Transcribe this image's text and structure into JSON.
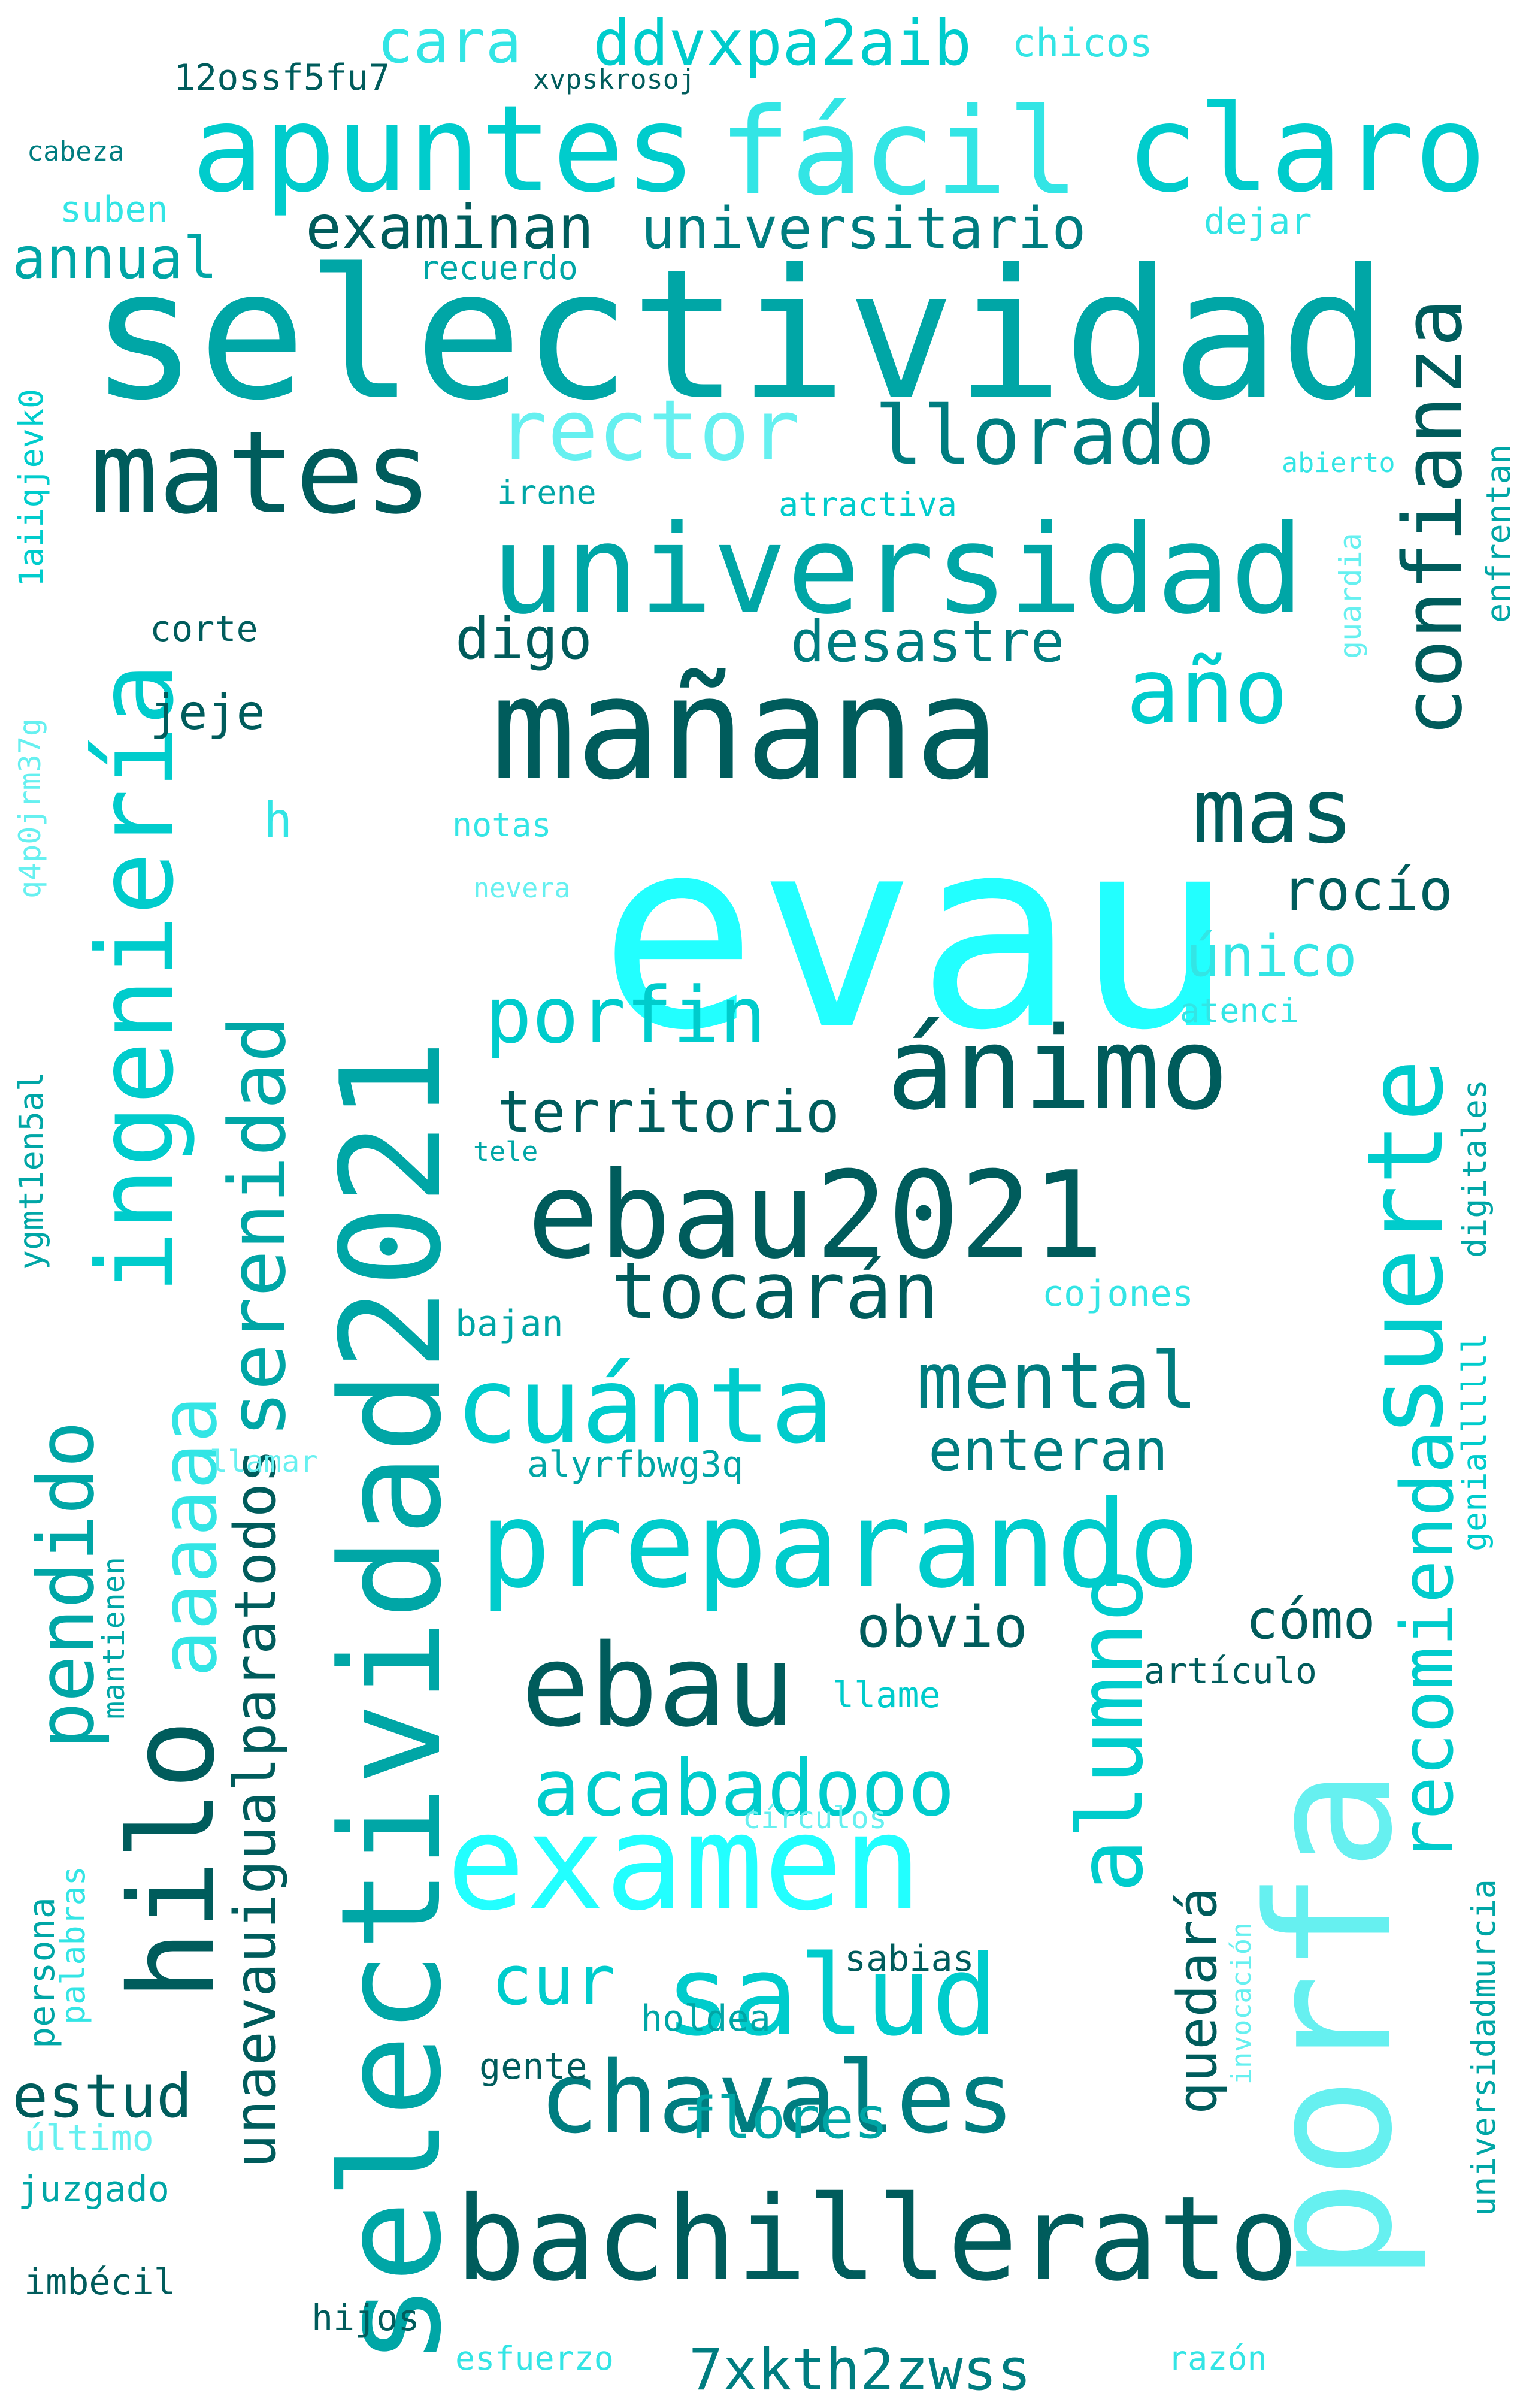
{
  "palette": {
    "dark": "#005c5c",
    "teal_dark": "#007d80",
    "teal": "#00a6a6",
    "cyan_mid": "#00cccc",
    "cyan_light": "#33e5e5",
    "cyan_bright": "#22ffff",
    "cyan_pale": "#66f0f0"
  },
  "words": [
    {
      "text": "evau",
      "color": "#22ffff"
    },
    {
      "text": "selectividad",
      "color": "#00a6a6"
    },
    {
      "text": "porfa",
      "color": "#66f0f0"
    },
    {
      "text": "selectividad2021",
      "color": "#00a6a6"
    },
    {
      "text": "mañana",
      "color": "#005c5c"
    },
    {
      "text": "universidad",
      "color": "#00a6a6"
    },
    {
      "text": "apuntes",
      "color": "#00cccc"
    },
    {
      "text": "fácil",
      "color": "#33e5e5"
    },
    {
      "text": "claro",
      "color": "#00cccc"
    },
    {
      "text": "mates",
      "color": "#005c5c"
    },
    {
      "text": "ebau2021",
      "color": "#005c5c"
    },
    {
      "text": "examen",
      "color": "#22ffff"
    },
    {
      "text": "bachillerato",
      "color": "#005c5c"
    },
    {
      "text": "preparando",
      "color": "#00cccc"
    },
    {
      "text": "ánimo",
      "color": "#005c5c"
    },
    {
      "text": "ebau",
      "color": "#005c5c"
    },
    {
      "text": "chavales",
      "color": "#007d80"
    },
    {
      "text": "salud",
      "color": "#00cccc"
    },
    {
      "text": "cuánta",
      "color": "#00cccc"
    },
    {
      "text": "hilo",
      "color": "#005c5c"
    },
    {
      "text": "suerte",
      "color": "#00cccc"
    },
    {
      "text": "ingeniería",
      "color": "#00cccc"
    },
    {
      "text": "confianza",
      "color": "#005c5c"
    },
    {
      "text": "alumno",
      "color": "#00cccc"
    },
    {
      "text": "rector",
      "color": "#66f0f0"
    },
    {
      "text": "llorado",
      "color": "#007d80"
    },
    {
      "text": "año",
      "color": "#00cccc"
    },
    {
      "text": "mas",
      "color": "#005c5c"
    },
    {
      "text": "porfin",
      "color": "#00cccc"
    },
    {
      "text": "tocarán",
      "color": "#005c5c"
    },
    {
      "text": "mental",
      "color": "#007d80"
    },
    {
      "text": "acabadooo",
      "color": "#00cccc"
    },
    {
      "text": "serenidad",
      "color": "#00a6a6"
    },
    {
      "text": "recomienda",
      "color": "#00cccc"
    },
    {
      "text": "pendido",
      "color": "#00a6a6"
    },
    {
      "text": "aaaaaa",
      "color": "#33e5e5"
    },
    {
      "text": "ddvxpa2aib",
      "color": "#00cccc"
    },
    {
      "text": "examinan",
      "color": "#005c5c"
    },
    {
      "text": "universitario",
      "color": "#007d80"
    },
    {
      "text": "cara",
      "color": "#33e5e5"
    },
    {
      "text": "annual",
      "color": "#00a6a6"
    },
    {
      "text": "digo",
      "color": "#005c5c"
    },
    {
      "text": "desastre",
      "color": "#007d80"
    },
    {
      "text": "jeje",
      "color": "#005c5c"
    },
    {
      "text": "territorio",
      "color": "#005c5c"
    },
    {
      "text": "rocío",
      "color": "#005c5c"
    },
    {
      "text": "único",
      "color": "#33e5e5"
    },
    {
      "text": "enteran",
      "color": "#007d80"
    },
    {
      "text": "unaevauigualparatodos",
      "color": "#005c5c"
    },
    {
      "text": "obvio",
      "color": "#005c5c"
    },
    {
      "text": "cómo",
      "color": "#005c5c"
    },
    {
      "text": "cur",
      "color": "#00cccc"
    },
    {
      "text": "estud",
      "color": "#005c5c"
    },
    {
      "text": "flores",
      "color": "#00a6a6"
    },
    {
      "text": "quedará",
      "color": "#005c5c"
    },
    {
      "text": "7xkth2zwss",
      "color": "#007d80"
    },
    {
      "text": "12ossf5fu7",
      "color": "#005c5c"
    },
    {
      "text": "xvpskrosoj",
      "color": "#005c5c"
    },
    {
      "text": "chicos",
      "color": "#33e5e5"
    },
    {
      "text": "cabeza",
      "color": "#007d80"
    },
    {
      "text": "suben",
      "color": "#33e5e5"
    },
    {
      "text": "dejar",
      "color": "#33e5e5"
    },
    {
      "text": "recuerdo",
      "color": "#00a6a6"
    },
    {
      "text": "1aiiqjevk0",
      "color": "#00cccc"
    },
    {
      "text": "abierto",
      "color": "#33e5e5"
    },
    {
      "text": "irene",
      "color": "#00a6a6"
    },
    {
      "text": "atractiva",
      "color": "#00cccc"
    },
    {
      "text": "enfrentan",
      "color": "#00a6a6"
    },
    {
      "text": "guardia",
      "color": "#66f0f0"
    },
    {
      "text": "corte",
      "color": "#005c5c"
    },
    {
      "text": "q4p0jrm37g",
      "color": "#66f0f0"
    },
    {
      "text": "h",
      "color": "#33e5e5"
    },
    {
      "text": "notas",
      "color": "#33e5e5"
    },
    {
      "text": "nevera",
      "color": "#66f0f0"
    },
    {
      "text": "atenci",
      "color": "#33e5e5"
    },
    {
      "text": "digitales",
      "color": "#00a6a6"
    },
    {
      "text": "tele",
      "color": "#00a6a6"
    },
    {
      "text": "ygmt1en5al",
      "color": "#00a6a6"
    },
    {
      "text": "geniallllll",
      "color": "#00cccc"
    },
    {
      "text": "cojones",
      "color": "#33e5e5"
    },
    {
      "text": "bajan",
      "color": "#00a6a6"
    },
    {
      "text": "mantienen",
      "color": "#00a6a6"
    },
    {
      "text": "llamar",
      "color": "#66f0f0"
    },
    {
      "text": "alyrfbwg3q",
      "color": "#00a6a6"
    },
    {
      "text": "llame",
      "color": "#00cccc"
    },
    {
      "text": "artículo",
      "color": "#005c5c"
    },
    {
      "text": "círculos",
      "color": "#66f0f0"
    },
    {
      "text": "palabras",
      "color": "#33e5e5"
    },
    {
      "text": "persona",
      "color": "#00a6a6"
    },
    {
      "text": "holdea",
      "color": "#00a6a6"
    },
    {
      "text": "sabias",
      "color": "#005c5c"
    },
    {
      "text": "invocación",
      "color": "#66f0f0"
    },
    {
      "text": "gente",
      "color": "#005c5c"
    },
    {
      "text": "universidadmurcia",
      "color": "#00a6a6"
    },
    {
      "text": "último",
      "color": "#66f0f0"
    },
    {
      "text": "juzgado",
      "color": "#00a6a6"
    },
    {
      "text": "imbécil",
      "color": "#005c5c"
    },
    {
      "text": "hijos",
      "color": "#005c5c"
    },
    {
      "text": "esfuerzo",
      "color": "#33e5e5"
    },
    {
      "text": "razón",
      "color": "#33e5e5"
    }
  ]
}
